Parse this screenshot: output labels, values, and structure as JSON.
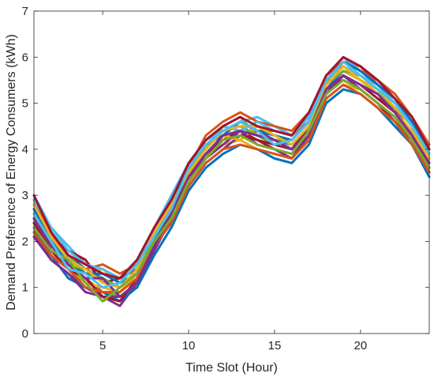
{
  "chart_data": {
    "type": "line",
    "xlabel": "Time Slot (Hour)",
    "ylabel": "Demand Preference of Energy Consumers (kWh)",
    "xlim": [
      1,
      24
    ],
    "ylim": [
      0,
      7
    ],
    "xticks": [
      5,
      10,
      15,
      20
    ],
    "yticks": [
      0,
      1,
      2,
      3,
      4,
      5,
      6,
      7
    ],
    "grid": false,
    "legend": "none",
    "x": [
      1,
      2,
      3,
      4,
      5,
      6,
      7,
      8,
      9,
      10,
      11,
      12,
      13,
      14,
      15,
      16,
      17,
      18,
      19,
      20,
      21,
      22,
      23,
      24
    ],
    "series_colors": [
      "#0072BD",
      "#D95319",
      "#EDB120",
      "#7E2F8E",
      "#77AC30",
      "#4DBEEE",
      "#A2142F"
    ],
    "series": [
      {
        "values": [
          2.9,
          2.2,
          1.7,
          1.4,
          1.2,
          1.0,
          1.3,
          2.1,
          2.8,
          3.5,
          4.1,
          4.4,
          4.5,
          4.3,
          4.2,
          4.1,
          4.5,
          5.3,
          5.7,
          5.5,
          5.2,
          4.8,
          4.4,
          3.7
        ]
      },
      {
        "values": [
          2.5,
          1.9,
          1.5,
          1.2,
          0.9,
          0.8,
          1.0,
          1.8,
          2.5,
          3.3,
          3.8,
          4.3,
          4.6,
          4.4,
          4.4,
          4.3,
          4.6,
          5.4,
          5.9,
          5.8,
          5.4,
          5.1,
          4.5,
          3.9
        ]
      },
      {
        "values": [
          2.6,
          2.0,
          1.6,
          1.3,
          1.4,
          1.1,
          1.5,
          2.2,
          2.6,
          3.4,
          3.9,
          4.1,
          4.2,
          4.0,
          3.9,
          3.8,
          4.2,
          5.1,
          5.4,
          5.3,
          5.0,
          4.7,
          4.3,
          3.6
        ]
      },
      {
        "values": [
          2.2,
          1.6,
          1.3,
          1.0,
          0.8,
          0.6,
          1.1,
          1.9,
          2.4,
          3.2,
          3.7,
          4.0,
          4.3,
          4.4,
          4.2,
          4.0,
          4.4,
          5.2,
          5.6,
          5.4,
          5.1,
          4.9,
          4.3,
          3.5
        ]
      },
      {
        "values": [
          2.4,
          1.8,
          1.4,
          1.1,
          0.7,
          0.9,
          1.2,
          2.0,
          2.7,
          3.6,
          4.0,
          4.5,
          4.7,
          4.3,
          4.1,
          4.2,
          4.6,
          5.5,
          5.8,
          5.6,
          5.3,
          4.8,
          4.4,
          3.8
        ]
      },
      {
        "values": [
          3.0,
          2.3,
          1.9,
          1.5,
          1.3,
          1.1,
          1.6,
          2.3,
          3.0,
          3.7,
          4.2,
          4.4,
          4.6,
          4.7,
          4.5,
          4.3,
          4.7,
          5.6,
          6.0,
          5.7,
          5.4,
          5.0,
          4.6,
          4.0
        ]
      },
      {
        "values": [
          2.7,
          2.1,
          1.8,
          1.6,
          1.1,
          1.2,
          1.4,
          2.1,
          2.8,
          3.4,
          3.8,
          4.2,
          4.4,
          4.2,
          4.0,
          3.9,
          4.3,
          5.3,
          5.5,
          5.3,
          5.0,
          4.6,
          4.2,
          3.5
        ]
      },
      {
        "values": [
          2.3,
          1.7,
          1.2,
          1.0,
          0.9,
          0.7,
          1.0,
          1.7,
          2.3,
          3.1,
          3.6,
          3.9,
          4.1,
          4.0,
          3.8,
          3.7,
          4.1,
          5.0,
          5.3,
          5.2,
          4.9,
          4.5,
          4.1,
          3.4
        ]
      },
      {
        "values": [
          2.8,
          2.2,
          1.6,
          1.4,
          1.5,
          1.3,
          1.5,
          2.3,
          2.9,
          3.6,
          4.3,
          4.6,
          4.8,
          4.6,
          4.5,
          4.4,
          4.8,
          5.6,
          5.9,
          5.7,
          5.5,
          5.2,
          4.7,
          4.1
        ]
      },
      {
        "values": [
          2.5,
          1.9,
          1.5,
          1.1,
          1.0,
          0.9,
          1.3,
          1.9,
          2.6,
          3.5,
          3.9,
          4.3,
          4.2,
          4.5,
          4.3,
          4.1,
          4.4,
          5.4,
          5.7,
          5.5,
          5.2,
          4.8,
          4.4,
          3.7
        ]
      },
      {
        "values": [
          2.1,
          1.6,
          1.3,
          0.9,
          0.8,
          0.8,
          1.1,
          1.8,
          2.5,
          3.3,
          3.8,
          4.1,
          4.4,
          4.1,
          4.0,
          3.8,
          4.3,
          5.2,
          5.6,
          5.3,
          5.0,
          4.7,
          4.2,
          3.6
        ]
      },
      {
        "values": [
          2.6,
          2.0,
          1.7,
          1.3,
          1.2,
          1.0,
          1.4,
          2.1,
          2.7,
          3.5,
          4.0,
          4.4,
          4.5,
          4.3,
          4.2,
          4.2,
          4.6,
          5.4,
          5.7,
          5.6,
          5.3,
          5.0,
          4.5,
          3.8
        ]
      },
      {
        "values": [
          2.9,
          2.3,
          1.8,
          1.5,
          1.4,
          1.2,
          1.6,
          2.2,
          2.9,
          3.7,
          4.2,
          4.5,
          4.4,
          4.6,
          4.4,
          4.3,
          4.7,
          5.5,
          5.8,
          5.6,
          5.4,
          5.0,
          4.6,
          3.9
        ]
      },
      {
        "values": [
          2.4,
          1.8,
          1.4,
          1.2,
          0.8,
          0.7,
          1.2,
          2.0,
          2.6,
          3.4,
          3.9,
          4.2,
          4.3,
          4.2,
          4.1,
          4.0,
          4.5,
          5.3,
          5.6,
          5.4,
          5.1,
          4.8,
          4.3,
          3.6
        ]
      },
      {
        "values": [
          2.7,
          2.1,
          1.5,
          1.3,
          1.3,
          1.1,
          1.3,
          2.0,
          2.8,
          3.6,
          4.1,
          4.3,
          4.6,
          4.4,
          4.3,
          4.2,
          4.6,
          5.5,
          5.9,
          5.7,
          5.4,
          5.1,
          4.6,
          4.0
        ]
      },
      {
        "values": [
          2.2,
          1.7,
          1.4,
          1.0,
          0.9,
          0.9,
          1.2,
          1.9,
          2.4,
          3.2,
          3.7,
          4.0,
          4.1,
          4.0,
          3.9,
          3.8,
          4.2,
          5.1,
          5.4,
          5.2,
          4.9,
          4.6,
          4.1,
          3.5
        ]
      },
      {
        "values": [
          2.8,
          2.1,
          1.6,
          1.4,
          1.1,
          1.0,
          1.4,
          2.2,
          2.8,
          3.5,
          4.0,
          4.4,
          4.5,
          4.5,
          4.3,
          4.1,
          4.5,
          5.4,
          5.8,
          5.5,
          5.3,
          4.9,
          4.5,
          3.8
        ]
      },
      {
        "values": [
          2.5,
          1.9,
          1.5,
          1.2,
          1.2,
          0.8,
          1.1,
          1.9,
          2.6,
          3.4,
          3.9,
          4.3,
          4.4,
          4.3,
          4.2,
          4.0,
          4.4,
          5.3,
          5.6,
          5.4,
          5.2,
          4.8,
          4.3,
          3.7
        ]
      },
      {
        "values": [
          2.3,
          1.8,
          1.6,
          1.1,
          0.7,
          1.0,
          1.3,
          2.0,
          2.5,
          3.3,
          3.8,
          4.2,
          4.3,
          4.1,
          4.0,
          3.9,
          4.4,
          5.2,
          5.5,
          5.3,
          5.0,
          4.7,
          4.2,
          3.6
        ]
      },
      {
        "values": [
          2.6,
          2.0,
          1.4,
          1.3,
          1.0,
          1.1,
          1.5,
          2.1,
          2.7,
          3.6,
          4.1,
          4.4,
          4.6,
          4.4,
          4.1,
          4.2,
          4.6,
          5.5,
          5.9,
          5.6,
          5.3,
          5.0,
          4.5,
          3.9
        ]
      },
      {
        "values": [
          3.0,
          2.2,
          1.7,
          1.5,
          1.3,
          1.2,
          1.6,
          2.3,
          2.9,
          3.7,
          4.2,
          4.5,
          4.7,
          4.5,
          4.4,
          4.3,
          4.8,
          5.6,
          6.0,
          5.8,
          5.5,
          5.1,
          4.7,
          4.0
        ]
      }
    ]
  }
}
